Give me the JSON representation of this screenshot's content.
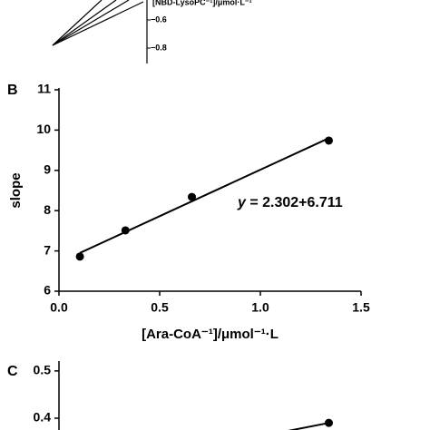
{
  "chart_data": [
    {
      "type": "line",
      "xlabel": "[NBD-LysoPC⁻¹]/μmol·L⁻¹",
      "yticks": [
        {
          "value": -0.6,
          "label": "−0.6"
        },
        {
          "value": -0.8,
          "label": "−0.8"
        }
      ]
    },
    {
      "type": "scatter",
      "panel": "B",
      "xlabel": "[Ara-CoA⁻¹]/μmol⁻¹·L",
      "ylabel": "slope",
      "x": [
        0.104,
        0.33,
        0.66,
        1.34
      ],
      "values": [
        6.86,
        7.51,
        8.34,
        9.74
      ],
      "fit": {
        "x": [
          0.104,
          1.34
        ],
        "values": [
          6.95,
          9.8
        ]
      },
      "annotation": {
        "var": "y",
        "text": " = 2.302+6.711"
      },
      "xlim": [
        0,
        1.5
      ],
      "ylim": [
        6,
        11
      ],
      "xticks": [
        {
          "value": 0,
          "label": "0.0"
        },
        0.5,
        {
          "value": 1,
          "label": "1.0"
        },
        1.5
      ],
      "yticks": [
        6,
        7,
        8,
        9,
        10,
        11
      ]
    },
    {
      "type": "scatter",
      "panel": "C",
      "x": [
        1.34
      ],
      "values": [
        0.39
      ],
      "fit": {
        "x": [
          1.1,
          1.34
        ],
        "values": [
          0.37,
          0.39
        ]
      },
      "xlim": [
        0,
        1.5
      ],
      "ylim": [
        0.375,
        0.517
      ],
      "yticks": [
        0.5,
        0.4
      ]
    }
  ]
}
